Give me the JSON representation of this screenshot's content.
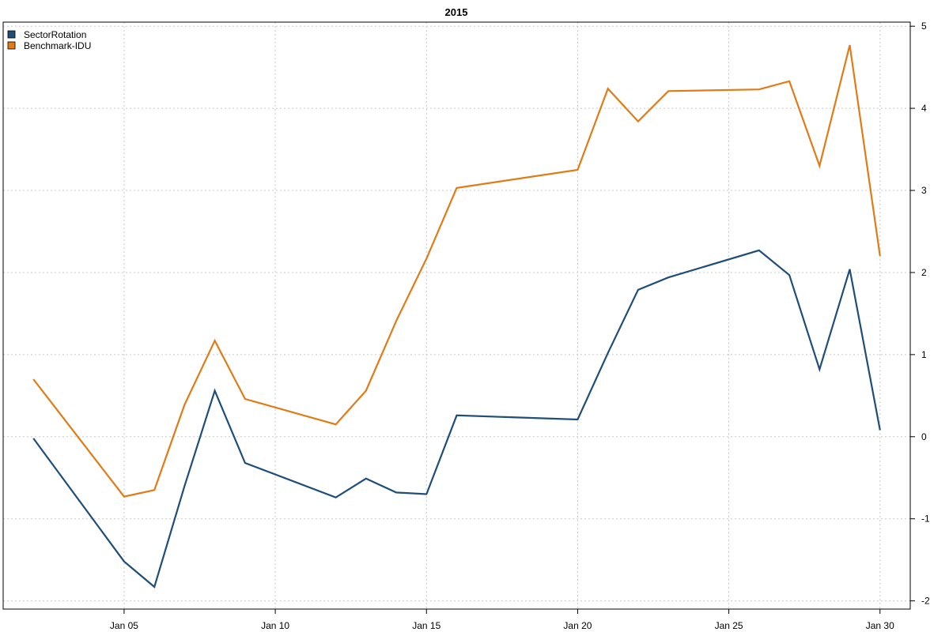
{
  "chart_data": {
    "type": "line",
    "title": "2015",
    "xlabel": "",
    "ylabel": "",
    "grid": true,
    "legend_position": "top-left",
    "y_axis_side": "right",
    "ylim": [
      -2.1,
      5.05
    ],
    "yticks": [
      -2,
      -1,
      0,
      1,
      2,
      3,
      4,
      5
    ],
    "xlim": [
      "2015-01-01",
      "2015-01-31"
    ],
    "xticks": [
      {
        "date": "2015-01-05",
        "label": "Jan 05"
      },
      {
        "date": "2015-01-10",
        "label": "Jan 10"
      },
      {
        "date": "2015-01-15",
        "label": "Jan 15"
      },
      {
        "date": "2015-01-20",
        "label": "Jan 20"
      },
      {
        "date": "2015-01-25",
        "label": "Jan 25"
      },
      {
        "date": "2015-01-30",
        "label": "Jan 30"
      }
    ],
    "x": [
      "2015-01-02",
      "2015-01-05",
      "2015-01-06",
      "2015-01-07",
      "2015-01-08",
      "2015-01-09",
      "2015-01-12",
      "2015-01-13",
      "2015-01-14",
      "2015-01-15",
      "2015-01-16",
      "2015-01-20",
      "2015-01-21",
      "2015-01-22",
      "2015-01-23",
      "2015-01-26",
      "2015-01-27",
      "2015-01-28",
      "2015-01-29",
      "2015-01-30"
    ],
    "series": [
      {
        "name": "SectorRotation",
        "color": "#1f4e79",
        "values": [
          -0.02,
          -1.52,
          -1.83,
          -0.6,
          0.56,
          -0.32,
          -0.74,
          -0.51,
          -0.68,
          -0.7,
          0.26,
          0.21,
          1.02,
          1.79,
          1.94,
          2.27,
          1.97,
          0.82,
          2.04,
          0.08
        ]
      },
      {
        "name": "Benchmark-IDU",
        "color": "#e07b16",
        "values": [
          0.7,
          -0.73,
          -0.65,
          0.39,
          1.17,
          0.46,
          0.15,
          0.56,
          1.41,
          2.17,
          3.03,
          3.25,
          4.24,
          3.84,
          4.21,
          4.23,
          4.33,
          3.3,
          4.77,
          2.2
        ]
      }
    ]
  }
}
